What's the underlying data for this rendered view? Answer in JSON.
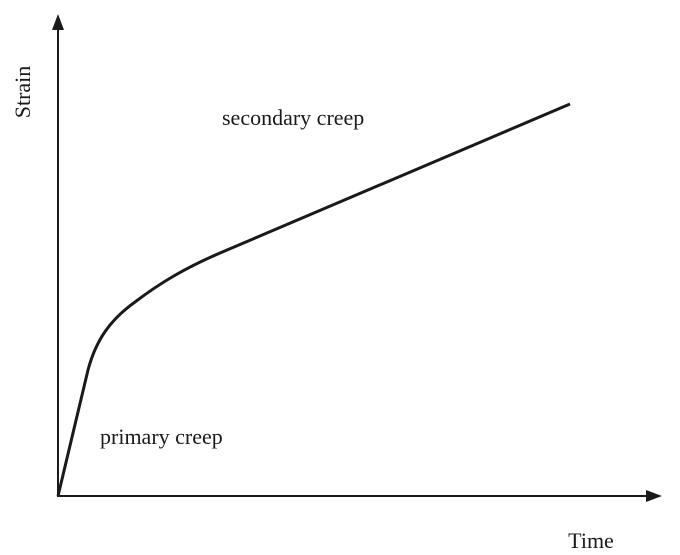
{
  "axes": {
    "y_label": "Strain",
    "x_label": "Time"
  },
  "annotations": [
    "secondary creep",
    "primary creep"
  ]
}
